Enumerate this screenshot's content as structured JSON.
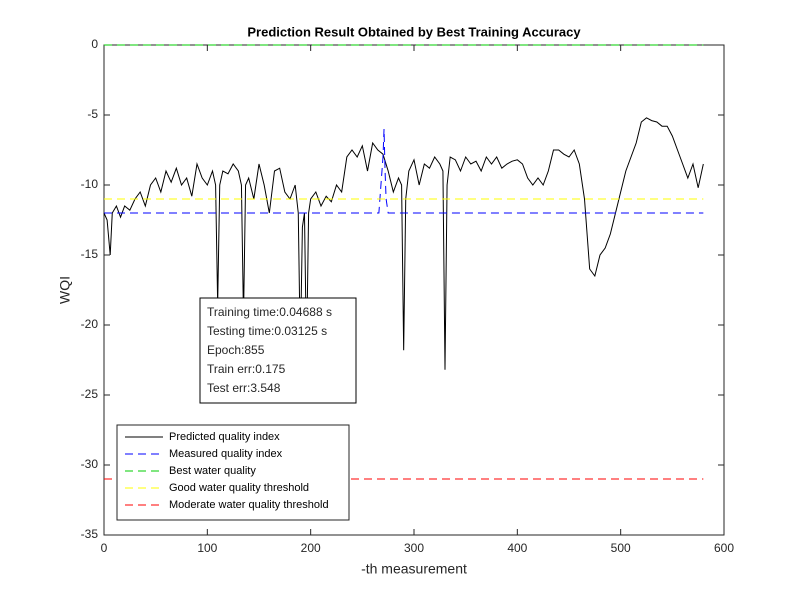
{
  "chart_data": {
    "type": "line",
    "title": "Prediction Result Obtained by Best Training Accuracy",
    "x_label": "-th measurement",
    "y_label": "WQI",
    "xlim": [
      0,
      600
    ],
    "ylim": [
      -35,
      0
    ],
    "xticks": [
      0,
      100,
      200,
      300,
      400,
      500,
      600
    ],
    "yticks": [
      -35,
      -30,
      -25,
      -20,
      -15,
      -10,
      -5,
      0
    ],
    "grid": false,
    "legend": "lower left",
    "annotations": [
      "Training time:0.04688 s",
      "Testing time:0.03125 s",
      "Epoch:855",
      "Train err:0.175",
      "Test err:3.548"
    ],
    "series": [
      {
        "name": "Predicted quality index",
        "color": "#000000",
        "line_style": "solid",
        "x": [
          0,
          3,
          6,
          8,
          12,
          16,
          20,
          25,
          30,
          35,
          40,
          45,
          50,
          55,
          60,
          65,
          70,
          75,
          80,
          85,
          90,
          95,
          100,
          105,
          108,
          110,
          112,
          115,
          120,
          125,
          130,
          133,
          135,
          137,
          140,
          145,
          150,
          155,
          160,
          165,
          170,
          175,
          180,
          185,
          188,
          190,
          192,
          194,
          196,
          198,
          200,
          205,
          210,
          215,
          220,
          225,
          230,
          235,
          240,
          245,
          250,
          255,
          260,
          265,
          270,
          275,
          280,
          285,
          288,
          290,
          292,
          295,
          300,
          305,
          310,
          315,
          320,
          325,
          328,
          330,
          332,
          335,
          340,
          345,
          350,
          355,
          360,
          365,
          370,
          375,
          380,
          385,
          390,
          395,
          400,
          405,
          410,
          415,
          420,
          425,
          430,
          435,
          440,
          445,
          450,
          455,
          460,
          465,
          470,
          475,
          480,
          485,
          490,
          495,
          500,
          505,
          510,
          515,
          520,
          525,
          530,
          535,
          540,
          545,
          550,
          555,
          560,
          565,
          570,
          575,
          580
        ],
        "values": [
          -12,
          -12.5,
          -15,
          -12,
          -11.5,
          -12.3,
          -11.5,
          -11.8,
          -11,
          -10.5,
          -11.5,
          -10,
          -9.5,
          -10.5,
          -9,
          -9.8,
          -8.8,
          -10,
          -9.5,
          -10.8,
          -8.5,
          -9.5,
          -10,
          -9,
          -10,
          -18.5,
          -10,
          -9,
          -9.2,
          -8.5,
          -9,
          -10,
          -19.5,
          -10,
          -9.5,
          -11,
          -8.5,
          -10,
          -12,
          -9,
          -8.8,
          -10.5,
          -11,
          -10,
          -12,
          -22,
          -13,
          -12,
          -22.3,
          -12,
          -11,
          -10.5,
          -11.5,
          -10.8,
          -11.2,
          -10,
          -10.5,
          -8,
          -7.5,
          -8,
          -7.2,
          -9,
          -7,
          -7.5,
          -7.8,
          -9,
          -10.5,
          -9.5,
          -10,
          -21.8,
          -11,
          -9,
          -8.2,
          -10,
          -8.5,
          -8.8,
          -8,
          -8.5,
          -9,
          -23.2,
          -10,
          -8,
          -8.2,
          -9,
          -8,
          -8.5,
          -8.3,
          -9,
          -8,
          -8.5,
          -8,
          -8.8,
          -8.5,
          -8.3,
          -8.2,
          -8.5,
          -9.5,
          -10,
          -9.5,
          -10,
          -9,
          -7.5,
          -7.5,
          -7.8,
          -8,
          -7.5,
          -8.5,
          -11,
          -16,
          -16.5,
          -15,
          -14.5,
          -13.5,
          -12,
          -10.5,
          -9,
          -8,
          -7,
          -5.5,
          -5.2,
          -5.4,
          -5.5,
          -5.8,
          -5.8,
          -6.5,
          -7.5,
          -8.5,
          -9.5,
          -8.5,
          -10.2,
          -8.5
        ]
      },
      {
        "name": "Measured quality index",
        "color": "#0000ff",
        "line_style": "dashed",
        "x": [
          0,
          266,
          268,
          270,
          271,
          272,
          273,
          275,
          580
        ],
        "values": [
          -12,
          -12,
          -10,
          -8,
          -6,
          -9,
          -11,
          -12,
          -12
        ]
      },
      {
        "name": "Best water quality",
        "color": "#00cc00",
        "line_style": "dashed",
        "x": [
          0,
          580
        ],
        "values": [
          0,
          0
        ]
      },
      {
        "name": "Good water quality threshold",
        "color": "#ffff00",
        "line_style": "dashed",
        "x": [
          0,
          580
        ],
        "values": [
          -11,
          -11
        ]
      },
      {
        "name": "Moderate water quality threshold",
        "color": "#ff0000",
        "line_style": "dashed",
        "x": [
          0,
          580
        ],
        "values": [
          -31,
          -31
        ]
      }
    ]
  }
}
